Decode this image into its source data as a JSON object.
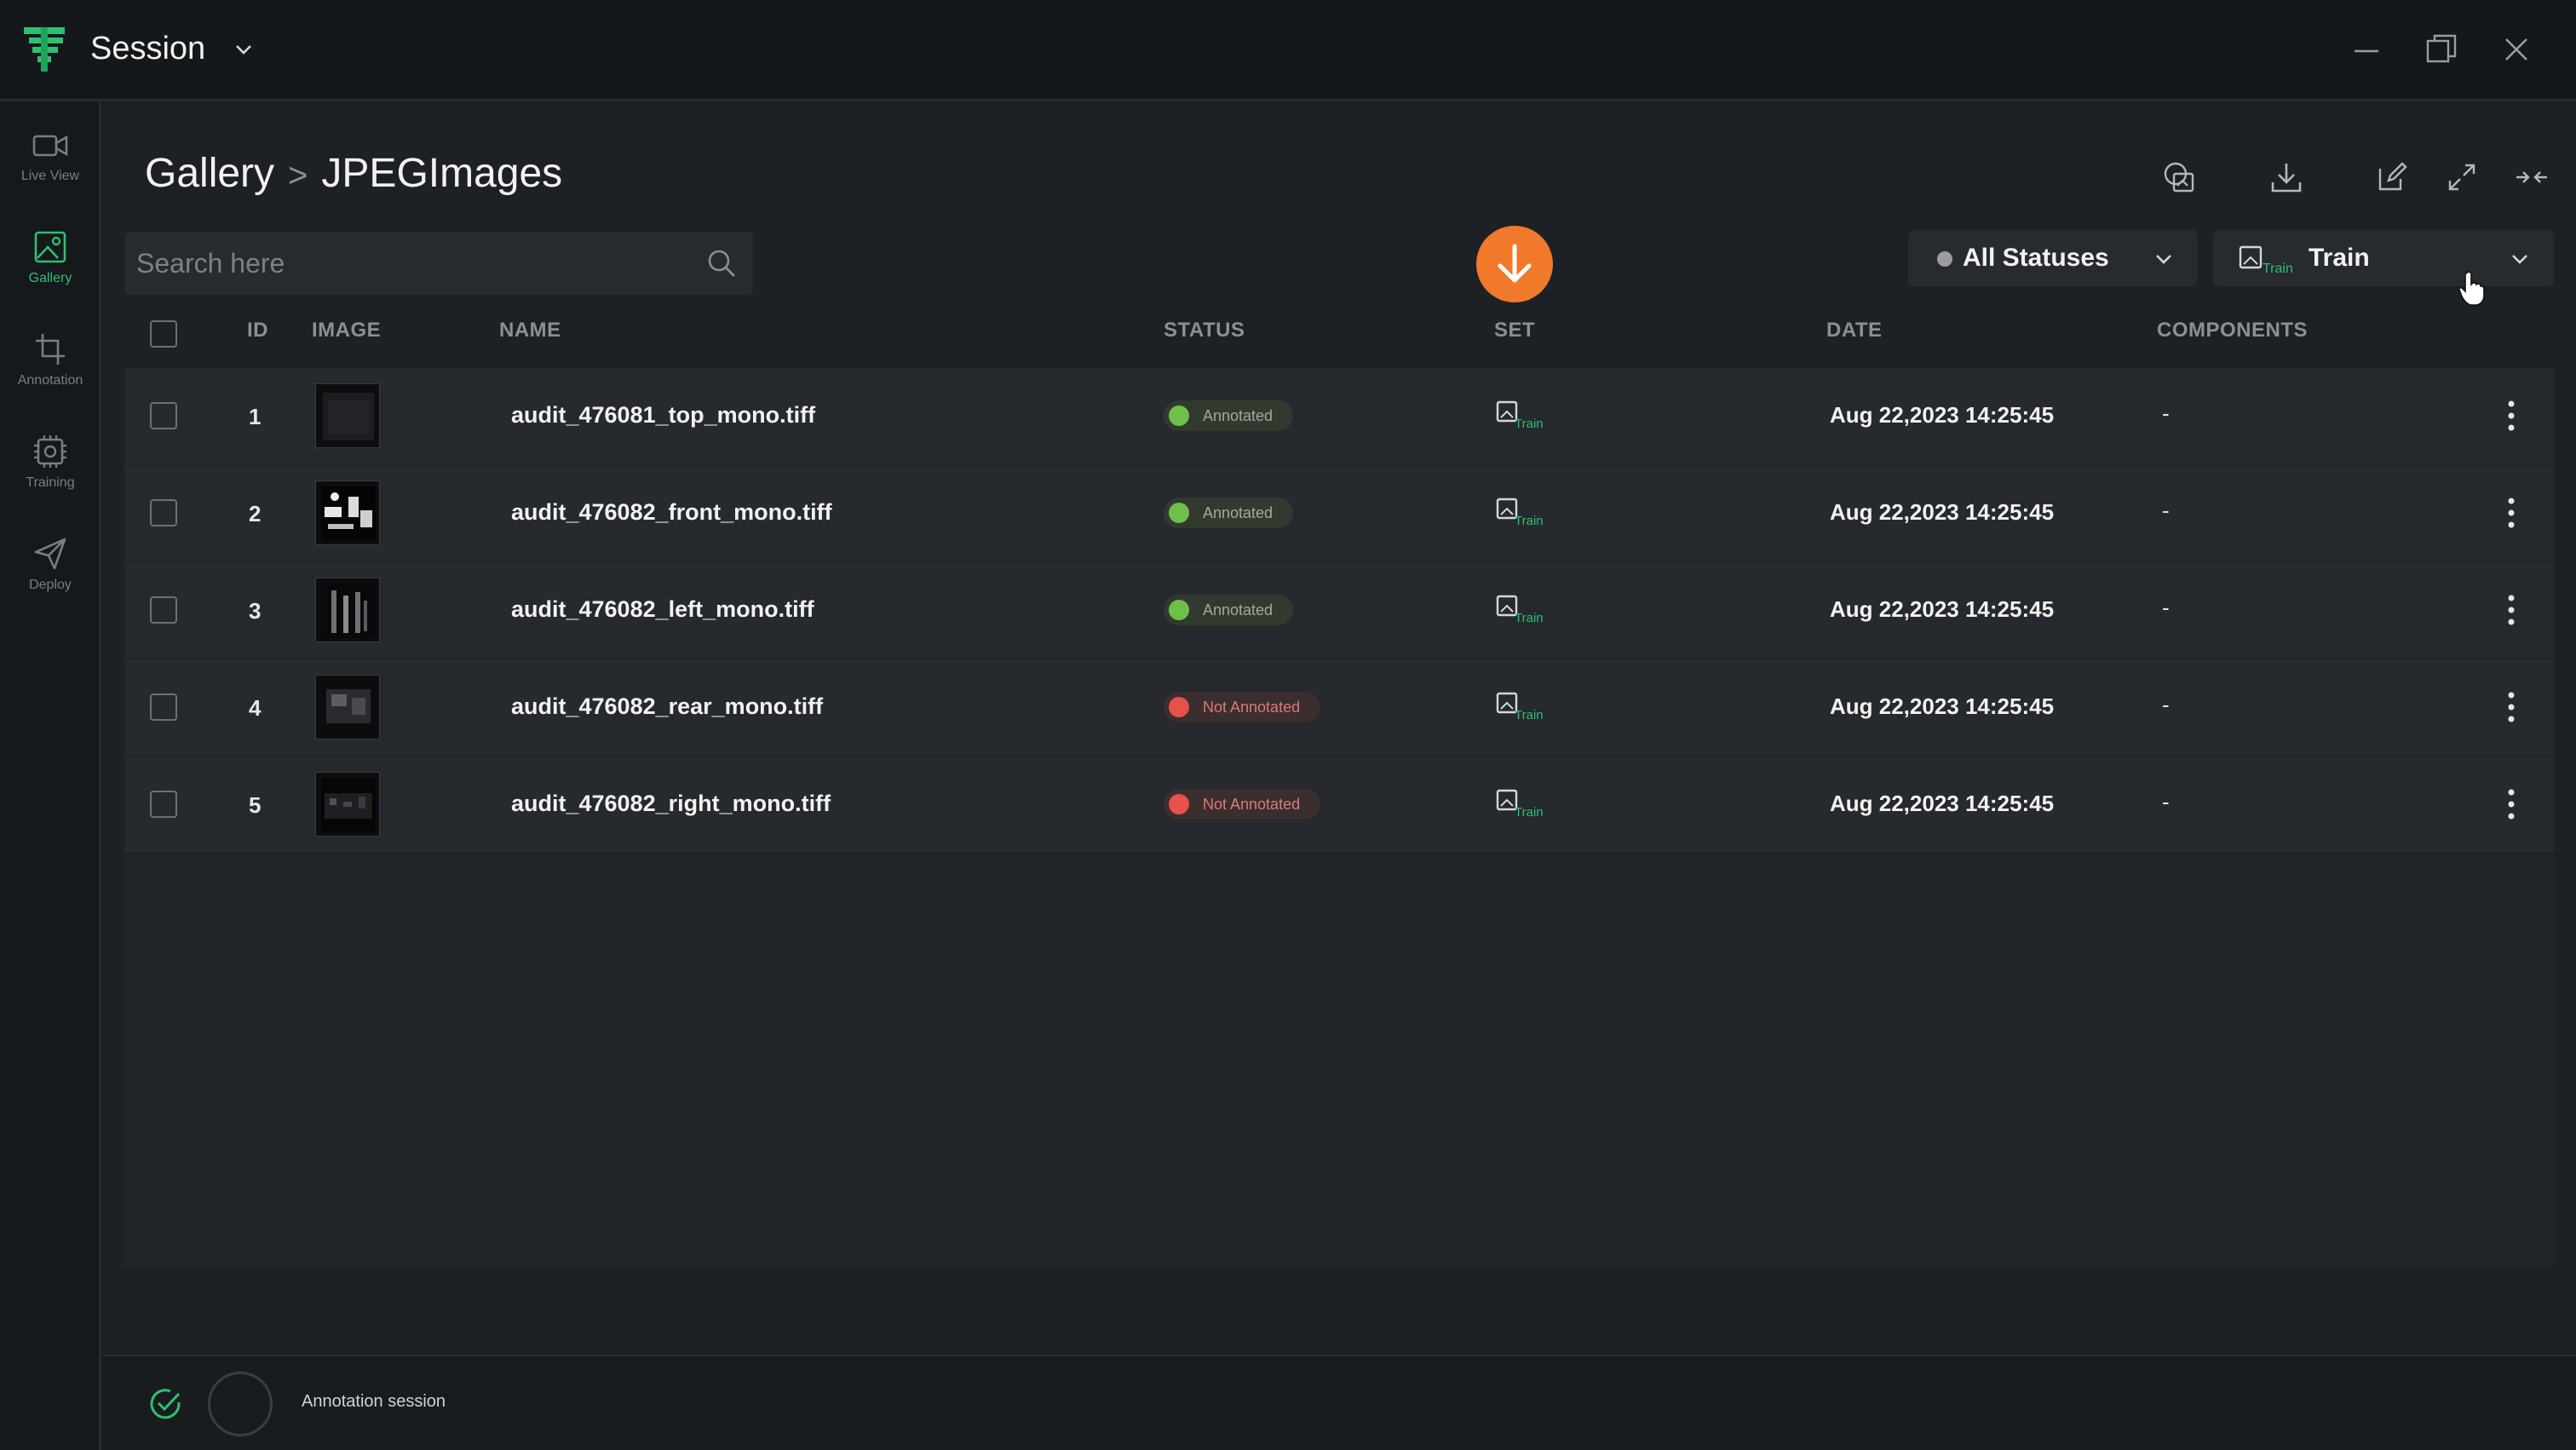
{
  "app": {
    "title": "Session"
  },
  "sidebar": {
    "items": [
      {
        "label": "Live View",
        "icon": "video-icon",
        "active": false
      },
      {
        "label": "Gallery",
        "icon": "image-icon",
        "active": true
      },
      {
        "label": "Annotation",
        "icon": "crop-icon",
        "active": false
      },
      {
        "label": "Training",
        "icon": "chip-icon",
        "active": false
      },
      {
        "label": "Deploy",
        "icon": "send-icon",
        "active": false
      }
    ]
  },
  "header": {
    "breadcrumb_root": "Gallery",
    "breadcrumb_sep": ">",
    "breadcrumb_current": "JPEGImages"
  },
  "search": {
    "placeholder": "Search here",
    "value": ""
  },
  "filters": {
    "status_label": "All Statuses",
    "set_label": "Train"
  },
  "table": {
    "columns": {
      "id": "ID",
      "image": "IMAGE",
      "name": "NAME",
      "status": "STATUS",
      "set": "SET",
      "date": "DATE",
      "components": "COMPONENTS"
    },
    "rows": [
      {
        "id": "1",
        "name": "audit_476081_top_mono.tiff",
        "status": "Annotated",
        "set": "Train",
        "date": "Aug 22,2023 14:25:45",
        "components": "-"
      },
      {
        "id": "2",
        "name": "audit_476082_front_mono.tiff",
        "status": "Annotated",
        "set": "Train",
        "date": "Aug 22,2023 14:25:45",
        "components": "-"
      },
      {
        "id": "3",
        "name": "audit_476082_left_mono.tiff",
        "status": "Annotated",
        "set": "Train",
        "date": "Aug 22,2023 14:25:45",
        "components": "-"
      },
      {
        "id": "4",
        "name": "audit_476082_rear_mono.tiff",
        "status": "Not Annotated",
        "set": "Train",
        "date": "Aug 22,2023 14:25:45",
        "components": "-"
      },
      {
        "id": "5",
        "name": "audit_476082_right_mono.tiff",
        "status": "Not Annotated",
        "set": "Train",
        "date": "Aug 22,2023 14:25:45",
        "components": "-"
      }
    ]
  },
  "footer": {
    "status_text": "Annotation session"
  },
  "colors": {
    "accent_green": "#2fbf71",
    "fab_orange": "#f07a2a",
    "annotated": "#6fc04a",
    "not_annotated": "#e8504a"
  }
}
